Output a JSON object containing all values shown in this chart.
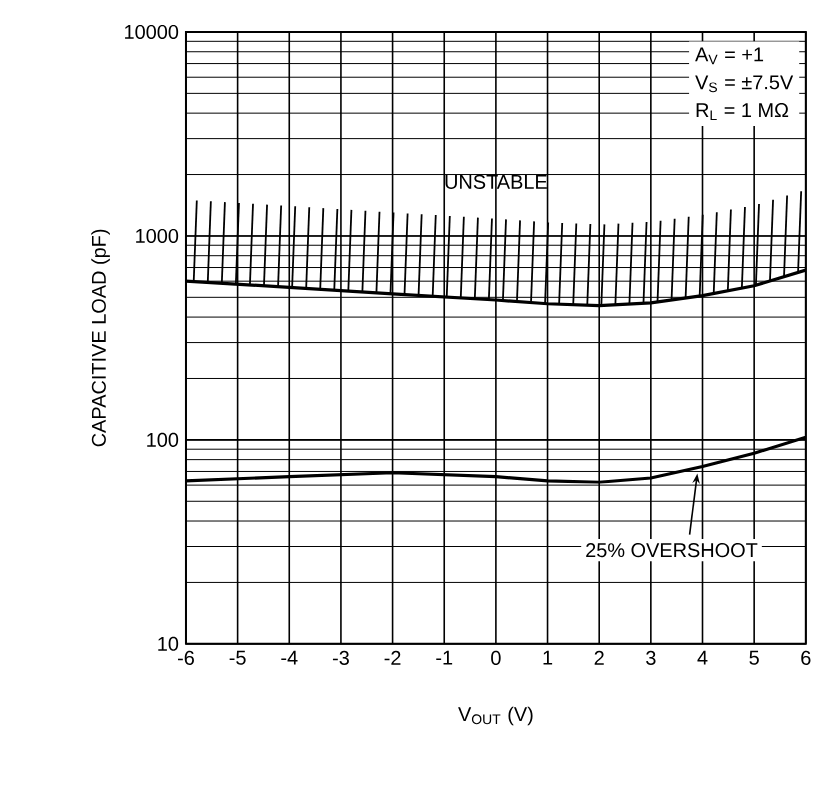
{
  "chart_data": {
    "type": "line",
    "xlabel": "V$_{OUT}$ (V)",
    "ylabel": "CAPACITIVE LOAD (pF)",
    "x": [
      -6,
      -4,
      -2,
      0,
      1,
      2,
      3,
      4,
      5,
      6
    ],
    "series": [
      {
        "color": "#000000",
        "values": [
          600,
          560,
          520,
          485,
          465,
          455,
          470,
          510,
          570,
          680
        ]
      },
      {
        "color": "#000000",
        "values": [
          63,
          66,
          69,
          66,
          63,
          62,
          65,
          74,
          86,
          103
        ]
      }
    ],
    "xlim": [
      -6,
      6
    ],
    "ylim": [
      10,
      10000
    ],
    "xticks": [
      -6,
      -5,
      -4,
      -3,
      -2,
      -1,
      0,
      1,
      2,
      3,
      4,
      5,
      6
    ],
    "yticks": [
      10,
      100,
      1000,
      10000
    ],
    "log": "y",
    "grid": true,
    "marker": "none",
    "line_style": "solid",
    "annotations": [
      "A$_{V}$ = +1",
      "V$_{S}$ = ±7.5V",
      "R$_{L}$ = 1 MΩ",
      "UNSTABLE",
      {
        "text": "25% OVERSHOOT",
        "x": 3.9,
        "y": 72
      }
    ]
  }
}
